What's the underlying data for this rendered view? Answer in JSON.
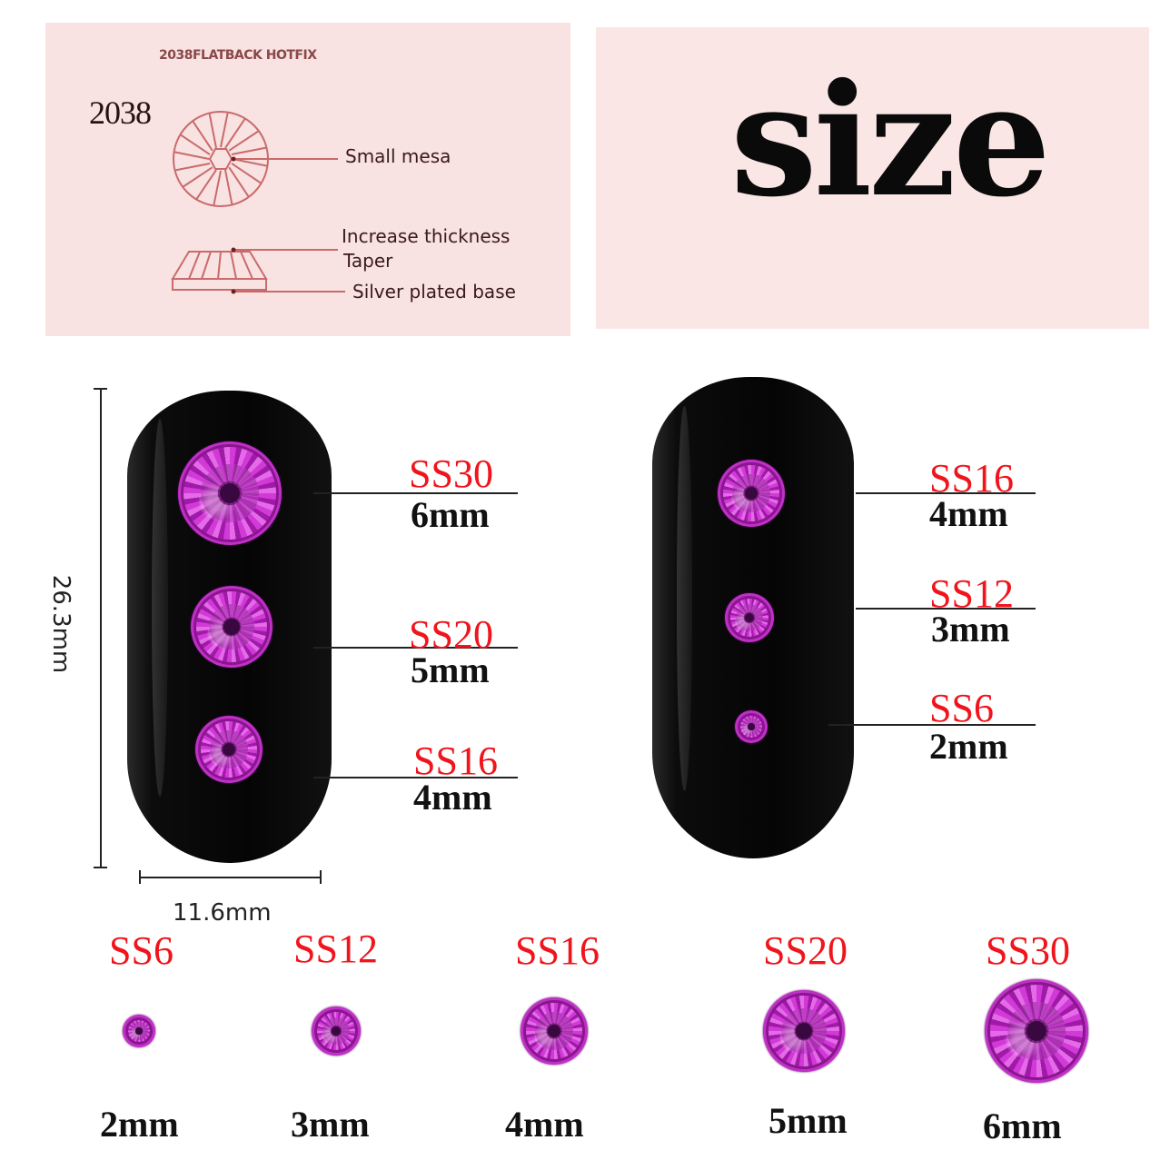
{
  "top_left_panel": {
    "heading": "2038FLATBACK HOTFIX",
    "model": "2038",
    "labels": {
      "small_mesa": "Small mesa",
      "increase_thickness": "Increase thickness",
      "taper": "Taper",
      "silver_base": "Silver plated base"
    },
    "line_color": "#c96b6b",
    "bg_color": "#f9e2e2"
  },
  "top_right_panel": {
    "title": "size",
    "bg_color": "#fbe6e6"
  },
  "dimensions": {
    "height": "26.3mm",
    "width": "11.6mm"
  },
  "left_nail": [
    {
      "ss": "SS30",
      "mm": "6mm"
    },
    {
      "ss": "SS20",
      "mm": "5mm"
    },
    {
      "ss": "SS16",
      "mm": "4mm"
    }
  ],
  "right_nail": [
    {
      "ss": "SS16",
      "mm": "4mm"
    },
    {
      "ss": "SS12",
      "mm": "3mm"
    },
    {
      "ss": "SS6",
      "mm": "2mm"
    }
  ],
  "size_row": [
    {
      "ss": "SS6",
      "mm": "2mm"
    },
    {
      "ss": "SS12",
      "mm": "3mm"
    },
    {
      "ss": "SS16",
      "mm": "4mm"
    },
    {
      "ss": "SS20",
      "mm": "5mm"
    },
    {
      "ss": "SS30",
      "mm": "6mm"
    }
  ],
  "colors": {
    "ss_label": "#f0141c",
    "gem": "#c02ad0",
    "nail": "#0a0a0a"
  }
}
